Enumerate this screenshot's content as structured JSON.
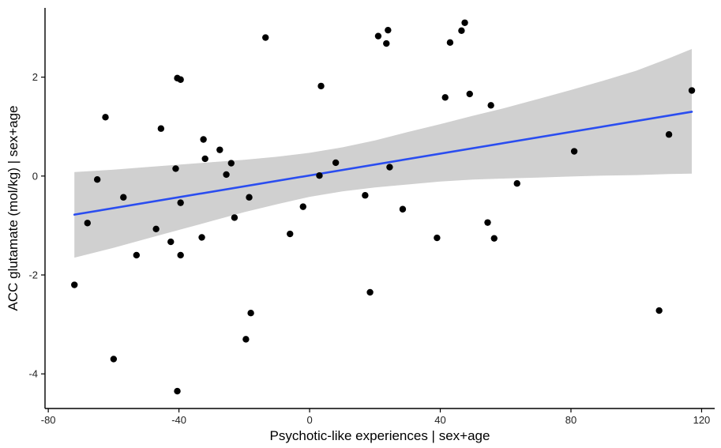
{
  "chart_data": {
    "type": "scatter",
    "xlabel": "Psychotic-like experiences | sex+age",
    "ylabel": "ACC glutamate (mol/kg) | sex+age",
    "xlim": [
      -81,
      124
    ],
    "ylim": [
      -4.7,
      3.4
    ],
    "x_ticks": [
      -80,
      -40,
      0,
      40,
      80,
      120
    ],
    "x_tick_labels": [
      "-80",
      "-40",
      "0",
      "40",
      "80",
      "120"
    ],
    "y_ticks": [
      -4,
      -2,
      0,
      2
    ],
    "y_tick_labels": [
      "-4",
      "-2",
      "0",
      "2"
    ],
    "grid": false,
    "legend": "none",
    "points": [
      {
        "x": -72,
        "y": -2.2
      },
      {
        "x": -68,
        "y": -0.95
      },
      {
        "x": -65,
        "y": -0.07
      },
      {
        "x": -62.5,
        "y": 1.19
      },
      {
        "x": -60,
        "y": -3.7
      },
      {
        "x": -57,
        "y": -0.43
      },
      {
        "x": -53,
        "y": -1.6
      },
      {
        "x": -47,
        "y": -1.07
      },
      {
        "x": -45.5,
        "y": 0.96
      },
      {
        "x": -42.5,
        "y": -1.33
      },
      {
        "x": -41,
        "y": 0.15
      },
      {
        "x": -40.5,
        "y": 1.98
      },
      {
        "x": -39.5,
        "y": 1.95
      },
      {
        "x": -39.5,
        "y": -0.54
      },
      {
        "x": -39.5,
        "y": -1.6
      },
      {
        "x": -40.5,
        "y": -4.35
      },
      {
        "x": -33,
        "y": -1.24
      },
      {
        "x": -32.5,
        "y": 0.74
      },
      {
        "x": -32,
        "y": 0.35
      },
      {
        "x": -27.5,
        "y": 0.53
      },
      {
        "x": -25.5,
        "y": 0.03
      },
      {
        "x": -24,
        "y": 0.26
      },
      {
        "x": -23,
        "y": -0.84
      },
      {
        "x": -19.5,
        "y": -3.3
      },
      {
        "x": -18.5,
        "y": -0.43
      },
      {
        "x": -18,
        "y": -2.77
      },
      {
        "x": -13.5,
        "y": 2.8
      },
      {
        "x": -6,
        "y": -1.17
      },
      {
        "x": -2,
        "y": -0.62
      },
      {
        "x": 3,
        "y": 0.01
      },
      {
        "x": 3.5,
        "y": 1.82
      },
      {
        "x": 8,
        "y": 0.27
      },
      {
        "x": 17,
        "y": -0.39
      },
      {
        "x": 18.5,
        "y": -2.35
      },
      {
        "x": 21,
        "y": 2.83
      },
      {
        "x": 23.5,
        "y": 2.68
      },
      {
        "x": 24,
        "y": 2.95
      },
      {
        "x": 24.5,
        "y": 0.18
      },
      {
        "x": 28.5,
        "y": -0.67
      },
      {
        "x": 39,
        "y": -1.25
      },
      {
        "x": 41.5,
        "y": 1.59
      },
      {
        "x": 43,
        "y": 2.7
      },
      {
        "x": 46.5,
        "y": 2.94
      },
      {
        "x": 47.5,
        "y": 3.1
      },
      {
        "x": 49,
        "y": 1.66
      },
      {
        "x": 54.5,
        "y": -0.94
      },
      {
        "x": 55.5,
        "y": 1.43
      },
      {
        "x": 56.5,
        "y": -1.26
      },
      {
        "x": 63.5,
        "y": -0.15
      },
      {
        "x": 81,
        "y": 0.5
      },
      {
        "x": 107,
        "y": -2.72
      },
      {
        "x": 110,
        "y": 0.84
      },
      {
        "x": 117,
        "y": 1.73
      }
    ],
    "fit_line": {
      "x_start": -72,
      "y_start": -0.78,
      "x_end": 117,
      "y_end": 1.3,
      "color": "#2a4df0"
    },
    "confidence_band": {
      "x": [
        -72,
        -60,
        -50,
        -40,
        -30,
        -20,
        -10,
        0,
        10,
        20,
        30,
        40,
        50,
        60,
        70,
        80,
        90,
        100,
        110,
        117
      ],
      "upper": [
        0.08,
        0.13,
        0.18,
        0.23,
        0.28,
        0.33,
        0.39,
        0.47,
        0.58,
        0.72,
        0.89,
        1.05,
        1.22,
        1.38,
        1.56,
        1.74,
        1.93,
        2.13,
        2.38,
        2.57
      ],
      "lower": [
        -1.65,
        -1.45,
        -1.27,
        -1.09,
        -0.91,
        -0.73,
        -0.57,
        -0.42,
        -0.31,
        -0.23,
        -0.17,
        -0.11,
        -0.07,
        -0.05,
        -0.03,
        -0.01,
        0.01,
        0.02,
        0.04,
        0.05
      ],
      "color": "#d0d0d0"
    },
    "point_color": "#000000",
    "axis_color": "#000000"
  }
}
